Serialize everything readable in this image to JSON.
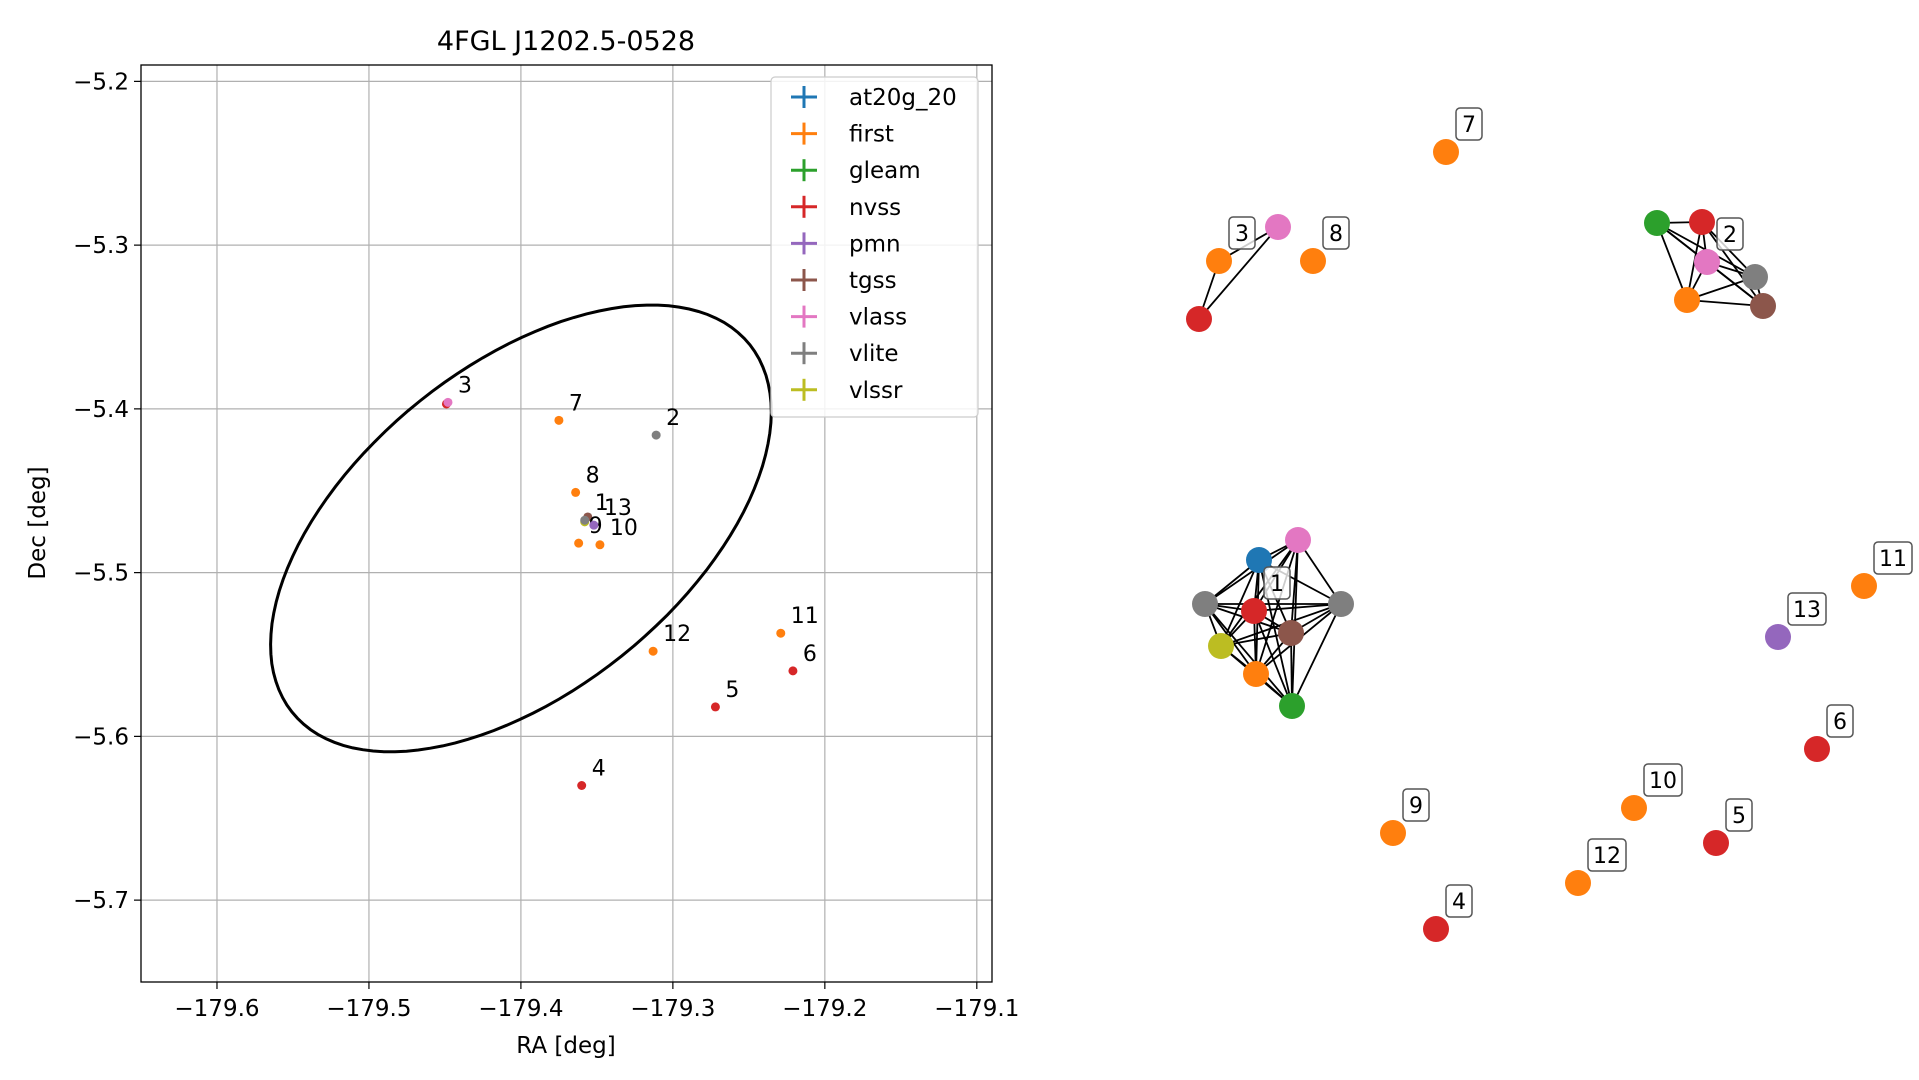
{
  "chart_data": [
    {
      "type": "scatter",
      "title": "4FGL J1202.5-0528",
      "xlabel": "RA [deg]",
      "ylabel": "Dec [deg]",
      "xlim": [
        -179.65,
        -179.09
      ],
      "ylim": [
        -5.75,
        -5.19
      ],
      "xticks": [
        -179.6,
        -179.5,
        -179.4,
        -179.3,
        -179.2,
        -179.1
      ],
      "xtick_labels": [
        "−179.6",
        "−179.5",
        "−179.4",
        "−179.3",
        "−179.2",
        "−179.1"
      ],
      "yticks": [
        -5.2,
        -5.3,
        -5.4,
        -5.5,
        -5.6,
        -5.7
      ],
      "ytick_labels": [
        "−5.2",
        "−5.3",
        "−5.4",
        "−5.5",
        "−5.6",
        "−5.7"
      ],
      "grid": true,
      "legend_position": "top-right",
      "series": [
        {
          "name": "at20g_20",
          "color": "#1f77b4"
        },
        {
          "name": "first",
          "color": "#ff7f0e"
        },
        {
          "name": "gleam",
          "color": "#2ca02c"
        },
        {
          "name": "nvss",
          "color": "#d62728"
        },
        {
          "name": "pmn",
          "color": "#9467bd"
        },
        {
          "name": "tgss",
          "color": "#8c564b"
        },
        {
          "name": "vlass",
          "color": "#e377c2"
        },
        {
          "name": "vlite",
          "color": "#7f7f7f"
        },
        {
          "name": "vlssr",
          "color": "#bcbd22"
        }
      ],
      "error_ellipse": {
        "center_ra": -179.4,
        "center_dec": -5.473,
        "semi_major": 0.188,
        "semi_minor": 0.102,
        "angle_deg": 35
      },
      "sources": [
        {
          "id": "1",
          "ra": -179.358,
          "dec": -5.468,
          "series": "vlite"
        },
        {
          "id": "2",
          "ra": -179.311,
          "dec": -5.416,
          "series": "vlite"
        },
        {
          "id": "3",
          "ra": -179.448,
          "dec": -5.396,
          "series": "vlass"
        },
        {
          "id": "4",
          "ra": -179.36,
          "dec": -5.63,
          "series": "nvss"
        },
        {
          "id": "5",
          "ra": -179.272,
          "dec": -5.582,
          "series": "nvss"
        },
        {
          "id": "6",
          "ra": -179.221,
          "dec": -5.56,
          "series": "nvss"
        },
        {
          "id": "7",
          "ra": -179.375,
          "dec": -5.407,
          "series": "first"
        },
        {
          "id": "8",
          "ra": -179.364,
          "dec": -5.451,
          "series": "first"
        },
        {
          "id": "9",
          "ra": -179.362,
          "dec": -5.482,
          "series": "first"
        },
        {
          "id": "10",
          "ra": -179.348,
          "dec": -5.483,
          "series": "first"
        },
        {
          "id": "11",
          "ra": -179.229,
          "dec": -5.537,
          "series": "first"
        },
        {
          "id": "12",
          "ra": -179.313,
          "dec": -5.548,
          "series": "first"
        },
        {
          "id": "13",
          "ra": -179.352,
          "dec": -5.471,
          "series": "pmn"
        }
      ]
    },
    {
      "type": "network",
      "labels": [
        "1",
        "2",
        "3",
        "4",
        "5",
        "6",
        "7",
        "8",
        "9",
        "10",
        "11",
        "12",
        "13"
      ]
    }
  ]
}
